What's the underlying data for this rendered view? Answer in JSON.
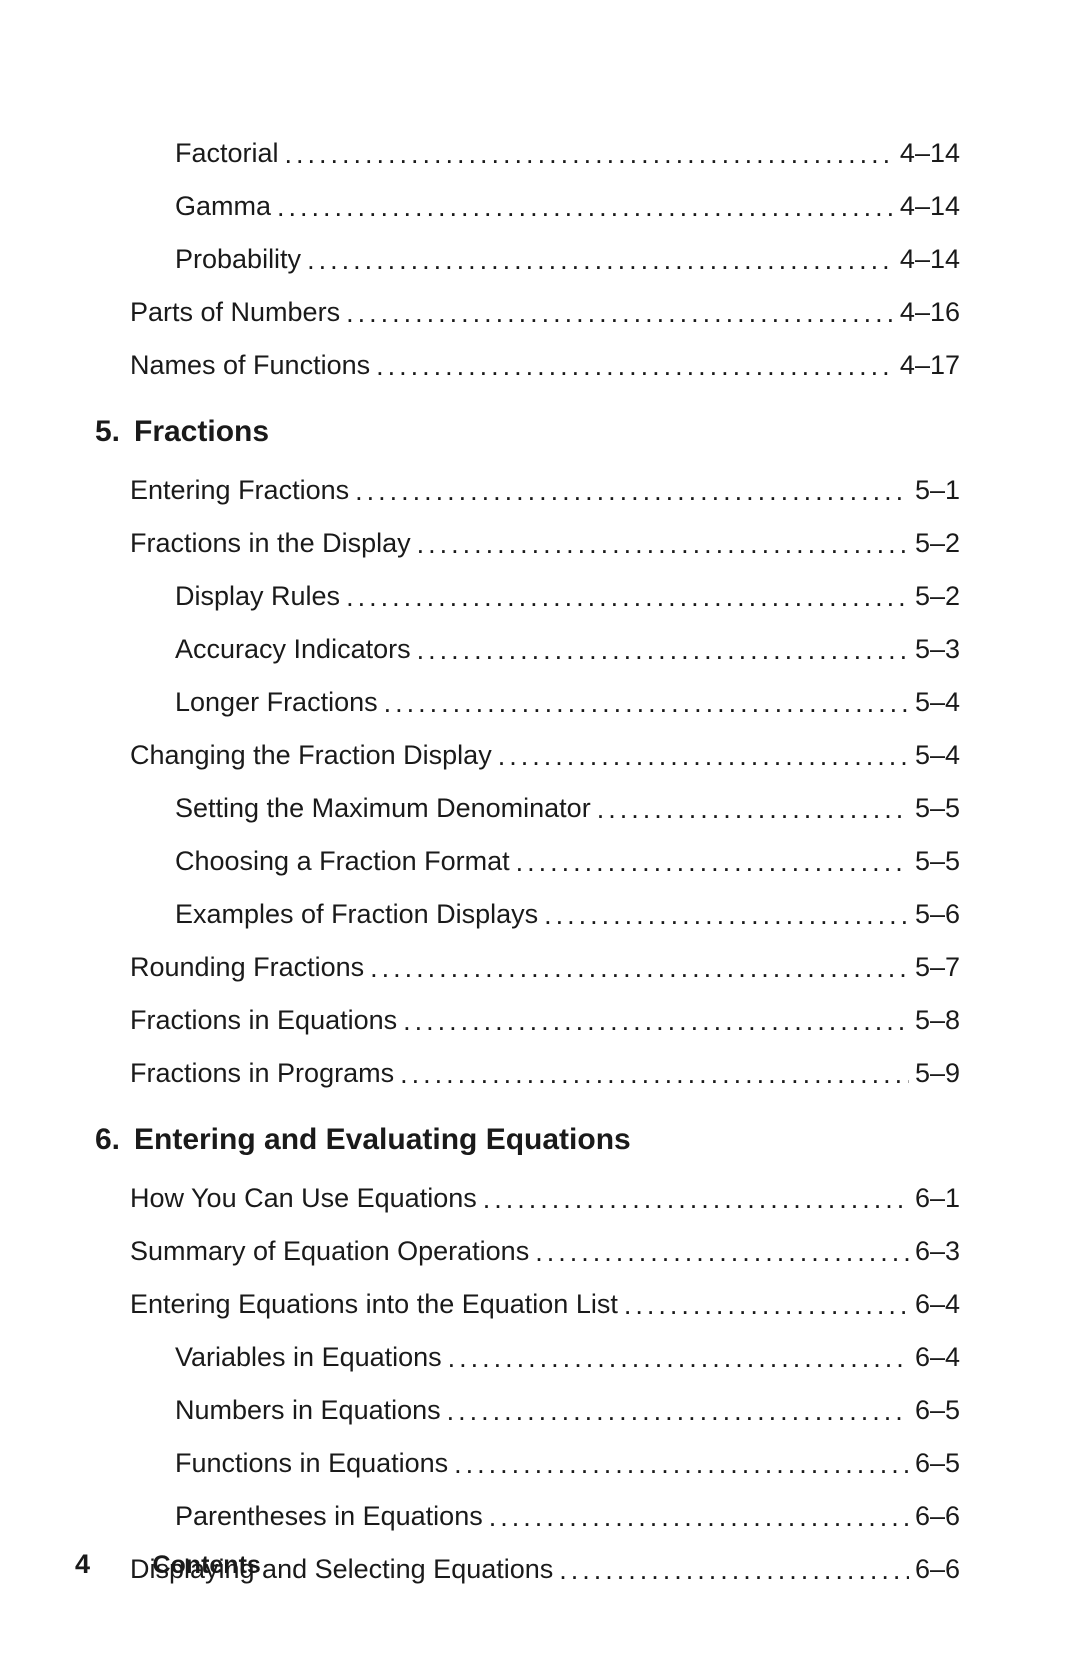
{
  "colors": {
    "background": "#ffffff",
    "text": "#1a1a1a"
  },
  "typography": {
    "body_size_pt": 20,
    "heading_size_pt": 22,
    "heading_weight": 700,
    "font_family": "Futura / Century Gothic"
  },
  "pre_entries": [
    {
      "level": 2,
      "title": "Factorial",
      "page": "4–14"
    },
    {
      "level": 2,
      "title": "Gamma",
      "page": "4–14"
    },
    {
      "level": 2,
      "title": "Probability",
      "page": "4–14"
    },
    {
      "level": 1,
      "title": "Parts of Numbers",
      "page": "4–16"
    },
    {
      "level": 1,
      "title": "Names of Functions",
      "page": "4–17"
    }
  ],
  "chapters": [
    {
      "number": "5.",
      "title": "Fractions",
      "entries": [
        {
          "level": 1,
          "title": "Entering Fractions",
          "page": "5–1"
        },
        {
          "level": 1,
          "title": "Fractions in the Display",
          "page": "5–2"
        },
        {
          "level": 2,
          "title": "Display Rules",
          "page": "5–2"
        },
        {
          "level": 2,
          "title": "Accuracy Indicators",
          "page": "5–3"
        },
        {
          "level": 2,
          "title": "Longer Fractions",
          "page": "5–4"
        },
        {
          "level": 1,
          "title": "Changing the Fraction Display",
          "page": "5–4"
        },
        {
          "level": 2,
          "title": "Setting the Maximum Denominator",
          "page": "5–5"
        },
        {
          "level": 2,
          "title": "Choosing a Fraction Format",
          "page": "5–5"
        },
        {
          "level": 2,
          "title": "Examples of Fraction Displays",
          "page": "5–6"
        },
        {
          "level": 1,
          "title": "Rounding Fractions",
          "page": "5–7"
        },
        {
          "level": 1,
          "title": "Fractions in Equations",
          "page": "5–8"
        },
        {
          "level": 1,
          "title": "Fractions in Programs",
          "page": "5–9"
        }
      ]
    },
    {
      "number": "6.",
      "title": "Entering and Evaluating Equations",
      "entries": [
        {
          "level": 1,
          "title": "How You Can Use Equations",
          "page": "6–1"
        },
        {
          "level": 1,
          "title": "Summary of Equation Operations",
          "page": "6–3"
        },
        {
          "level": 1,
          "title": "Entering Equations into the Equation List",
          "page": "6–4"
        },
        {
          "level": 2,
          "title": "Variables in Equations",
          "page": "6–4"
        },
        {
          "level": 2,
          "title": "Numbers in Equations",
          "page": "6–5"
        },
        {
          "level": 2,
          "title": "Functions in Equations",
          "page": "6–5"
        },
        {
          "level": 2,
          "title": "Parentheses in Equations",
          "page": "6–6"
        },
        {
          "level": 1,
          "title": "Displaying and Selecting Equations",
          "page": "6–6"
        }
      ]
    }
  ],
  "footer": {
    "page_number": "4",
    "label": "Contents"
  }
}
